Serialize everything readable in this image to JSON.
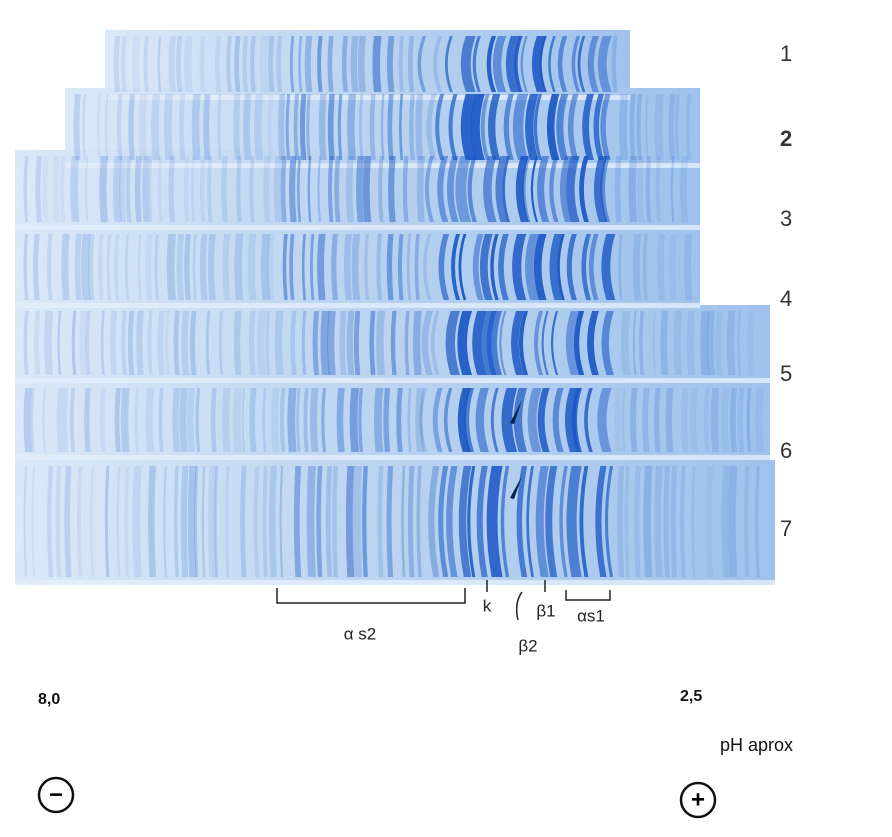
{
  "lane_labels": [
    "1",
    "2",
    "3",
    "4",
    "5",
    "6",
    "7"
  ],
  "band_labels": {
    "as2": "α s2",
    "k": "k",
    "b2": "β2",
    "b1": "β1",
    "as1": "αs1"
  },
  "ph": {
    "left": "8,0",
    "right": "2,5",
    "caption": "pH aprox"
  },
  "electrodes": {
    "negative": "−",
    "positive": "+"
  }
}
